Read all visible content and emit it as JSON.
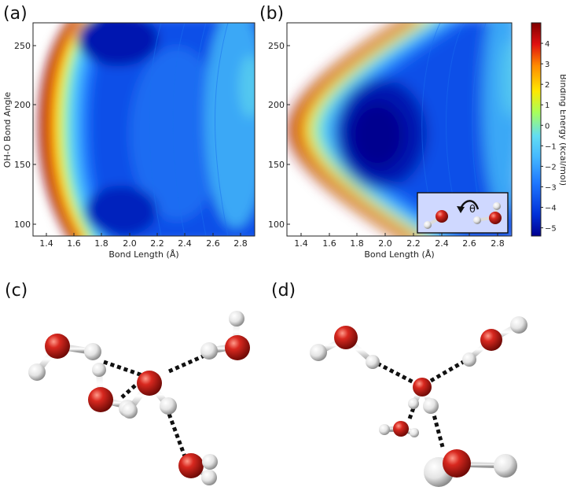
{
  "panel_labels": [
    "(a)",
    "(b)",
    "(c)",
    "(d)"
  ],
  "colors": {
    "heatmap_stops": [
      "#00008f",
      "#0030d8",
      "#1f78ff",
      "#45b8ff",
      "#62ddf2",
      "#a8ff5a",
      "#ffe800",
      "#ff8a00",
      "#e01010",
      "#7f0000"
    ],
    "oxygen": "#c9221b",
    "hydrogen": "#f2f2f2",
    "hbond": "#111111"
  },
  "colorbar": {
    "label": "Binding Energy (kcal/mol)",
    "ticks": [
      4,
      3,
      2,
      1,
      0,
      -1,
      -2,
      -3,
      -4,
      -5
    ],
    "tick_labels": [
      "4",
      "3",
      "2",
      "1",
      "0",
      "−1",
      "−2",
      "−3",
      "−4",
      "−5"
    ],
    "range": [
      -5.4,
      5.0
    ]
  },
  "chart_data": [
    {
      "panel": "(a)",
      "type": "heatmap",
      "xlabel": "Bond Length (Å)",
      "ylabel": "OH-O Bond Angle",
      "xlim": [
        1.3,
        2.9
      ],
      "ylim": [
        90,
        268
      ],
      "xticks": [
        "1.4",
        "1.6",
        "1.8",
        "2.0",
        "2.2",
        "2.4",
        "2.6",
        "2.8"
      ],
      "yticks": [
        "100",
        "150",
        "200",
        "250"
      ],
      "grid": false,
      "minima": [
        {
          "x": 1.95,
          "y": 252,
          "value": -5.2
        },
        {
          "x": 1.95,
          "y": 108,
          "value": -5.0
        }
      ]
    },
    {
      "panel": "(b)",
      "type": "heatmap",
      "xlabel": "Bond Length (Å)",
      "ylabel": "",
      "xlim": [
        1.3,
        2.9
      ],
      "ylim": [
        90,
        268
      ],
      "xticks": [
        "1.4",
        "1.6",
        "1.8",
        "2.0",
        "2.2",
        "2.4",
        "2.6",
        "2.8"
      ],
      "yticks": [
        "100",
        "150",
        "200",
        "250"
      ],
      "grid": false,
      "minima": [
        {
          "x": 1.92,
          "y": 178,
          "value": -5.4
        }
      ],
      "inset": {
        "symbol": "θ"
      }
    }
  ]
}
